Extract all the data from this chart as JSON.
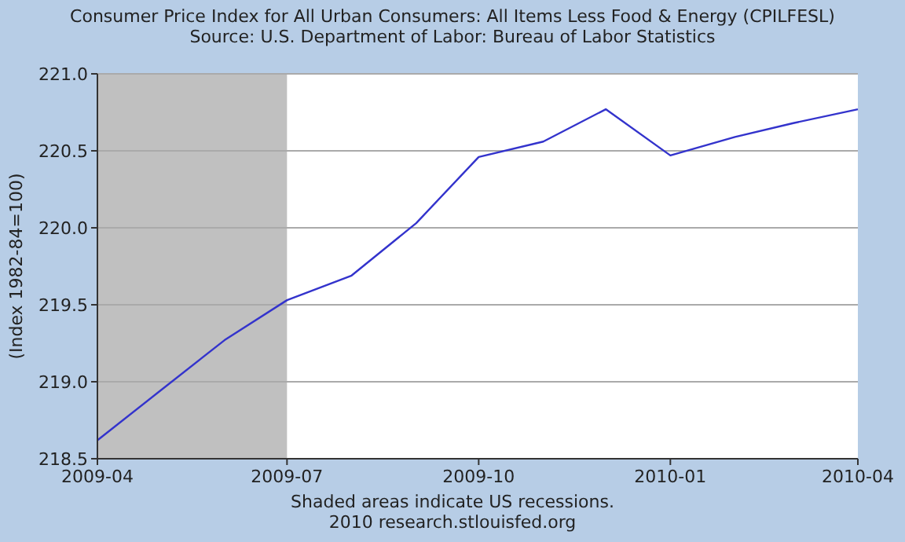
{
  "chart_data": {
    "type": "line",
    "title": "Consumer Price Index for All Urban Consumers: All Items Less Food & Energy (CPILFESL)",
    "subtitle": "Source: U.S. Department of Labor: Bureau of Labor Statistics",
    "ylabel": "(Index 1982-84=100)",
    "x": [
      "2009-04",
      "2009-05",
      "2009-06",
      "2009-07",
      "2009-08",
      "2009-09",
      "2009-10",
      "2009-11",
      "2009-12",
      "2010-01",
      "2010-02",
      "2010-03",
      "2010-04"
    ],
    "series": [
      {
        "color": "#3333cc",
        "values": [
          218.62,
          218.94,
          219.27,
          219.53,
          219.69,
          220.03,
          220.46,
          220.56,
          220.77,
          220.47,
          220.59,
          220.68,
          220.77
        ]
      }
    ],
    "xlim": [
      "2009-04",
      "2010-04"
    ],
    "xticks": [
      {
        "value": "2009-04",
        "label": "2009-04"
      },
      {
        "value": "2009-07",
        "label": "2009-07"
      },
      {
        "value": "2009-10",
        "label": "2009-10"
      },
      {
        "value": "2010-01",
        "label": "2010-01"
      },
      {
        "value": "2010-04",
        "label": "2010-04"
      }
    ],
    "ylim": [
      218.5,
      221.0
    ],
    "yticks": [
      {
        "value": 218.5,
        "label": "218.5"
      },
      {
        "value": 219,
        "label": "219.0"
      },
      {
        "value": 219.5,
        "label": "219.5"
      },
      {
        "value": 220,
        "label": "220.0"
      },
      {
        "value": 220.5,
        "label": "220.5"
      },
      {
        "value": 221,
        "label": "221.0"
      }
    ],
    "bands": [
      {
        "axis": "x",
        "from": "2009-04",
        "to": "2009-07",
        "color": "#c0c0c0"
      }
    ],
    "grid": "y",
    "marker": "none",
    "line_style": "solid",
    "annotations": [
      "Shaded areas indicate US recessions.",
      "2010 research.stlouisfed.org"
    ]
  }
}
